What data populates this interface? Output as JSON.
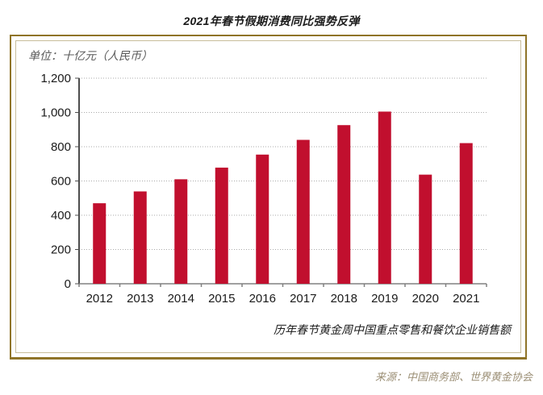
{
  "page_title": "2021年春节假期消费同比强势反弹",
  "unit_label": "单位：十亿元（人民币）",
  "caption": "历年春节黄金周中国重点零售和餐饮企业销售额",
  "source": "来源：中国商务部、世界黄金协会",
  "colors": {
    "bar": "#C10F2E",
    "panel_border": "#8F7428",
    "panel_inner_border": "#C8BD9B",
    "gridline": "#ABABAB",
    "axis": "#4D4D4D",
    "x_axis": "#808080",
    "tick_label": "#1a1a1a",
    "source_text": "#9A8E74"
  },
  "chart_data": {
    "type": "bar",
    "title": "2021年春节假期消费同比强势反弹",
    "xlabel": "",
    "ylabel": "单位：十亿元（人民币）",
    "categories": [
      "2012",
      "2013",
      "2014",
      "2015",
      "2016",
      "2017",
      "2018",
      "2019",
      "2020",
      "2021"
    ],
    "values": [
      470,
      539,
      610,
      678,
      754,
      840,
      926,
      1005,
      637,
      821
    ],
    "ylim": [
      0,
      1200
    ],
    "ytick_step": 200,
    "ytick_labels": [
      "0",
      "200",
      "400",
      "600",
      "800",
      "1,000",
      "1,200"
    ],
    "grid": "horizontal-dotted",
    "legend": "none",
    "annotation": "历年春节黄金周中国重点零售和餐饮企业销售额",
    "source": "来源：中国商务部、世界黄金协会"
  }
}
